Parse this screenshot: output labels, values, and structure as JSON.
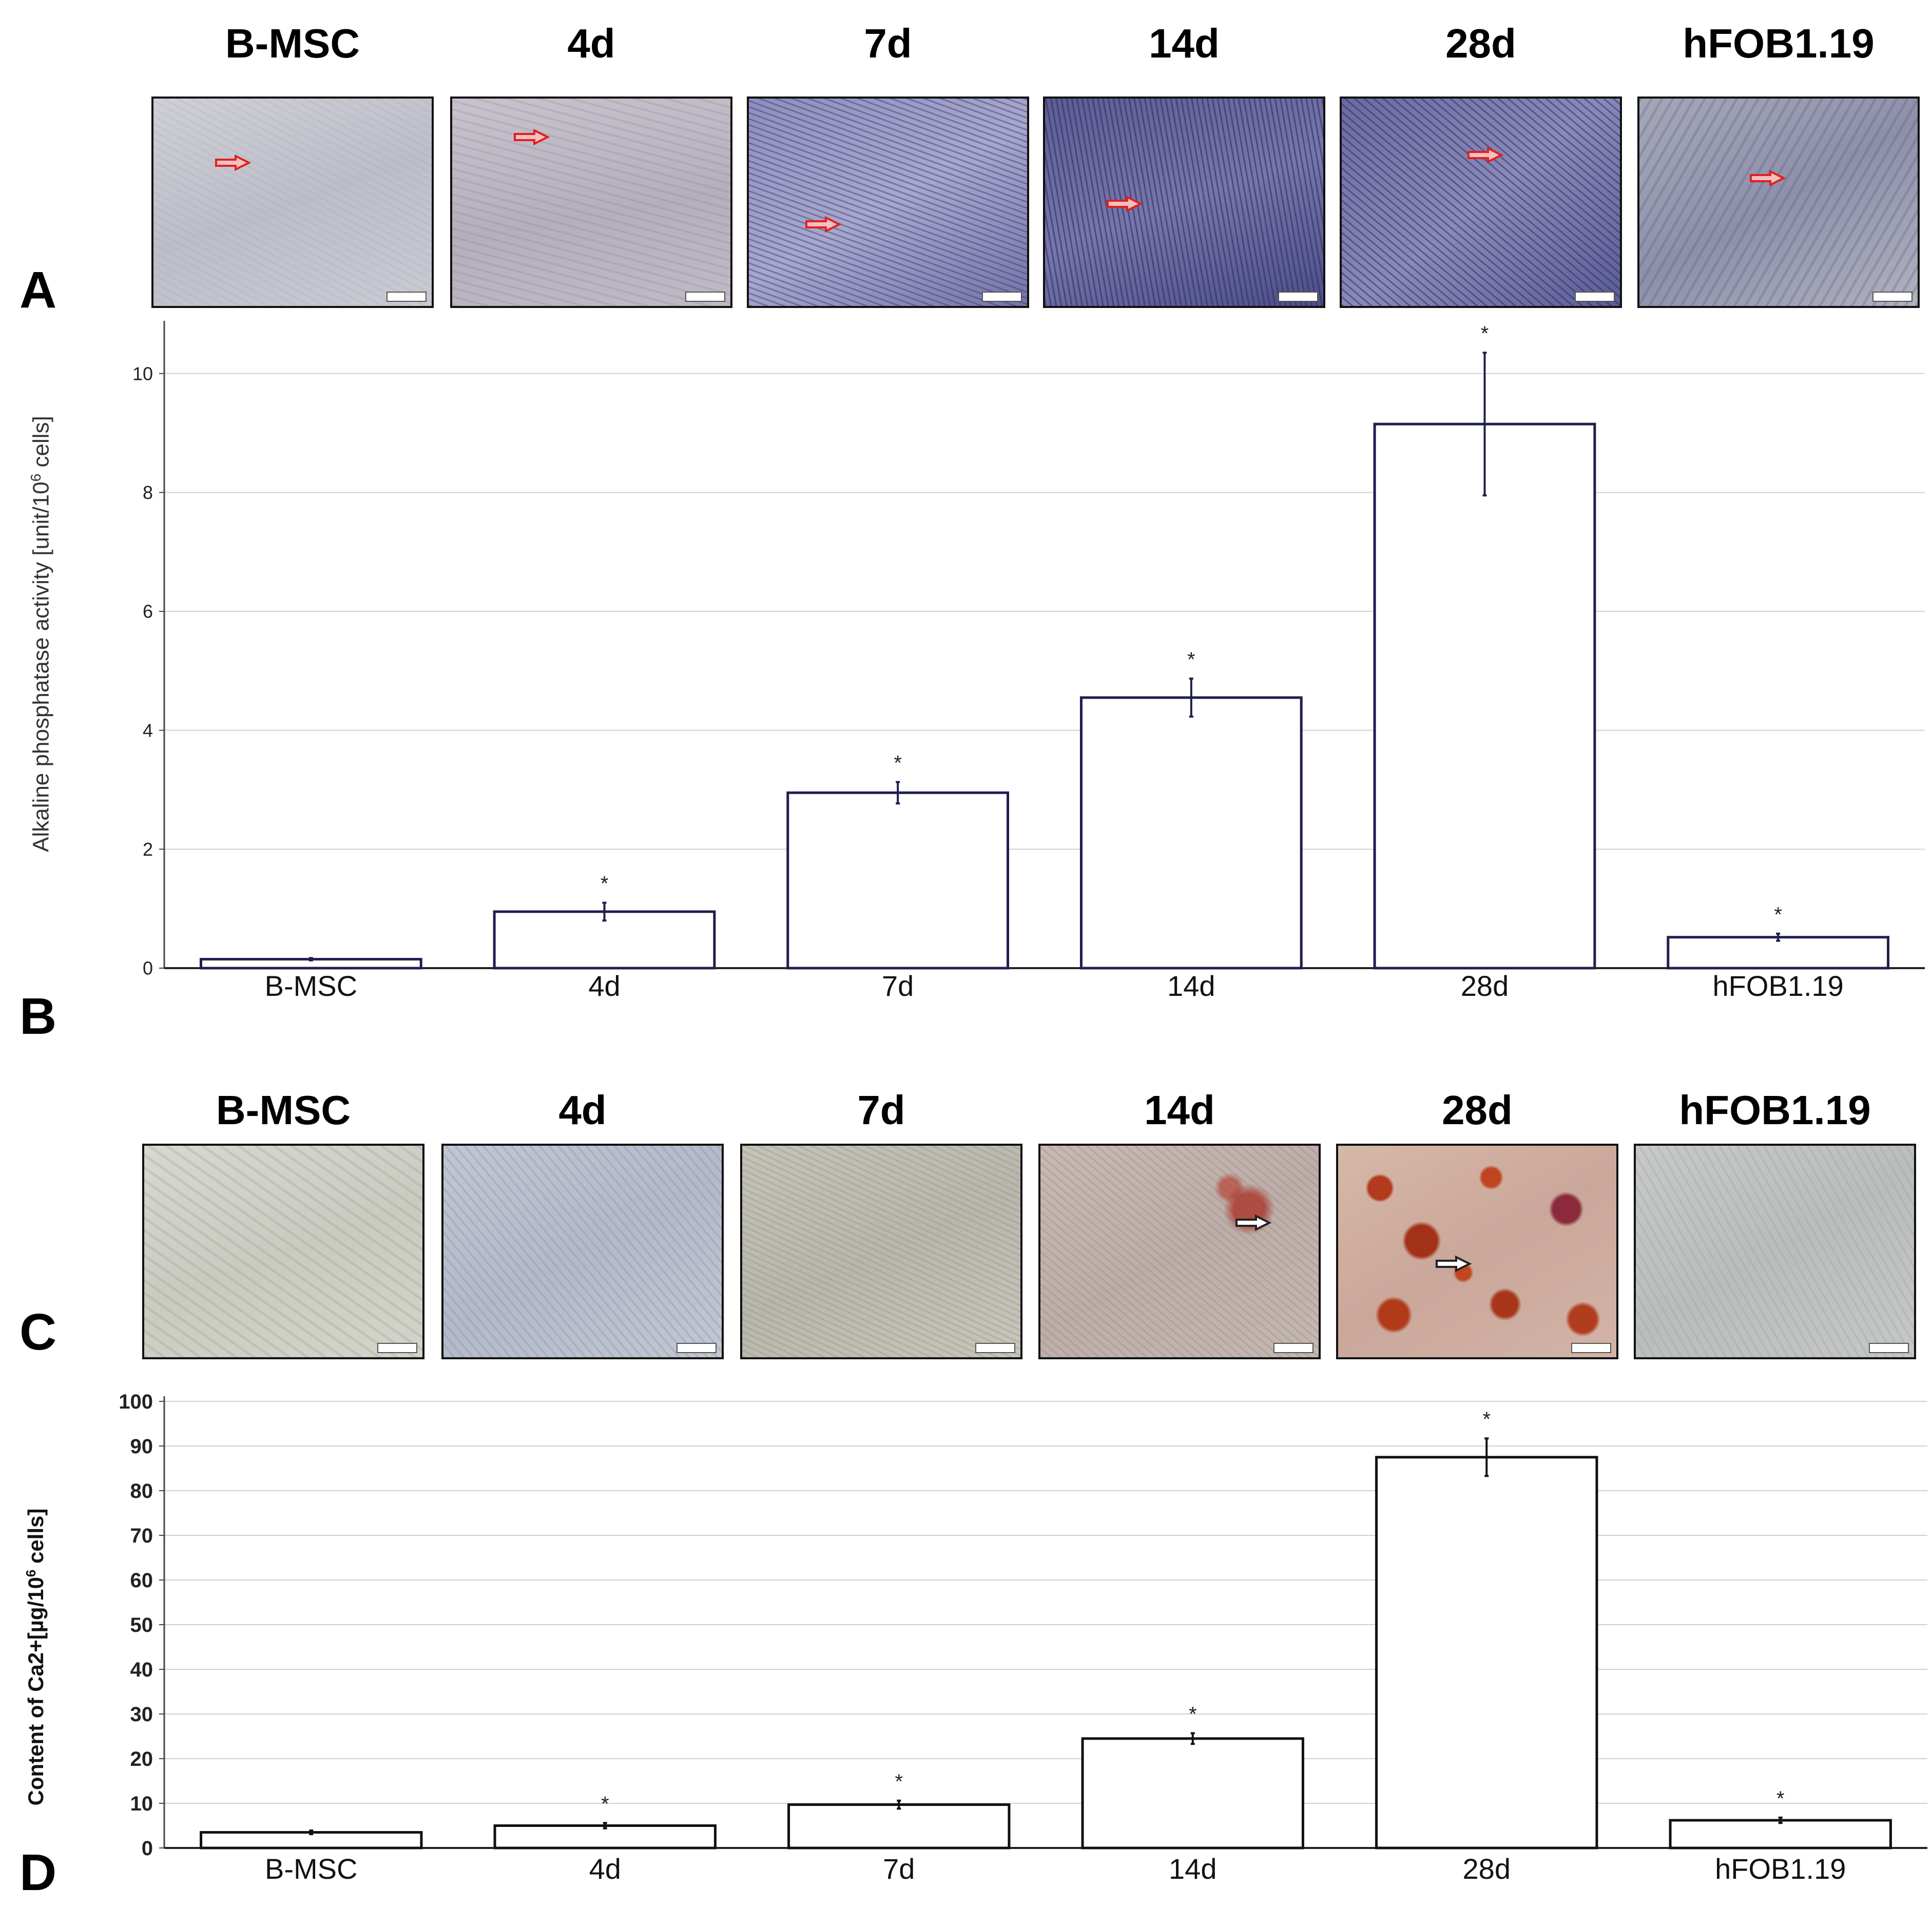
{
  "panels": {
    "a": "A",
    "b": "B",
    "c": "C",
    "d": "D"
  },
  "row_a_labels": [
    "B-MSC",
    "4d",
    "7d",
    "14d",
    "28d",
    "hFOB1.19"
  ],
  "row_c_labels": [
    "B-MSC",
    "4d",
    "7d",
    "14d",
    "28d",
    "hFOB1.19"
  ],
  "colors": {
    "alp_bar_edge": "#1f1f4f",
    "ca_bar_edge": "#111111",
    "grid": "#d0d0d0",
    "alp_stain": "#4a4a8a",
    "alizarin": "#c8401e",
    "arrow_red": "#e02020"
  },
  "chart_data": [
    {
      "id": "alp",
      "type": "bar",
      "ylabel": "Alkaline phosphatase activity [unit/10",
      "ylabel_sup": "6",
      "ylabel_end": " cells]",
      "categories": [
        "B-MSC",
        "4d",
        "7d",
        "14d",
        "28d",
        "hFOB1.19"
      ],
      "values": [
        0.15,
        0.95,
        2.95,
        4.55,
        9.15,
        0.52
      ],
      "errors": [
        0.02,
        0.15,
        0.18,
        0.32,
        1.2,
        0.06
      ],
      "significance": [
        "",
        "*",
        "*",
        "*",
        "*",
        "*"
      ],
      "ylim": [
        0,
        10.8
      ],
      "yticks": [
        0,
        2,
        4,
        6,
        8,
        10
      ],
      "grid": true
    },
    {
      "id": "ca",
      "type": "bar",
      "ylabel": "Content of Ca2+[µg/10",
      "ylabel_sup": "6",
      "ylabel_end": " cells]",
      "categories": [
        "B-MSC",
        "4d",
        "7d",
        "14d",
        "28d",
        "hFOB1.19"
      ],
      "values": [
        3.5,
        5.0,
        9.7,
        24.5,
        87.5,
        6.2
      ],
      "errors": [
        0.4,
        0.6,
        0.9,
        1.2,
        4.2,
        0.6
      ],
      "significance": [
        "",
        "*",
        "*",
        "*",
        "*",
        "*"
      ],
      "ylim": [
        0,
        100
      ],
      "yticks": [
        0,
        10,
        20,
        30,
        40,
        50,
        60,
        70,
        80,
        90,
        100
      ],
      "grid": true
    }
  ]
}
